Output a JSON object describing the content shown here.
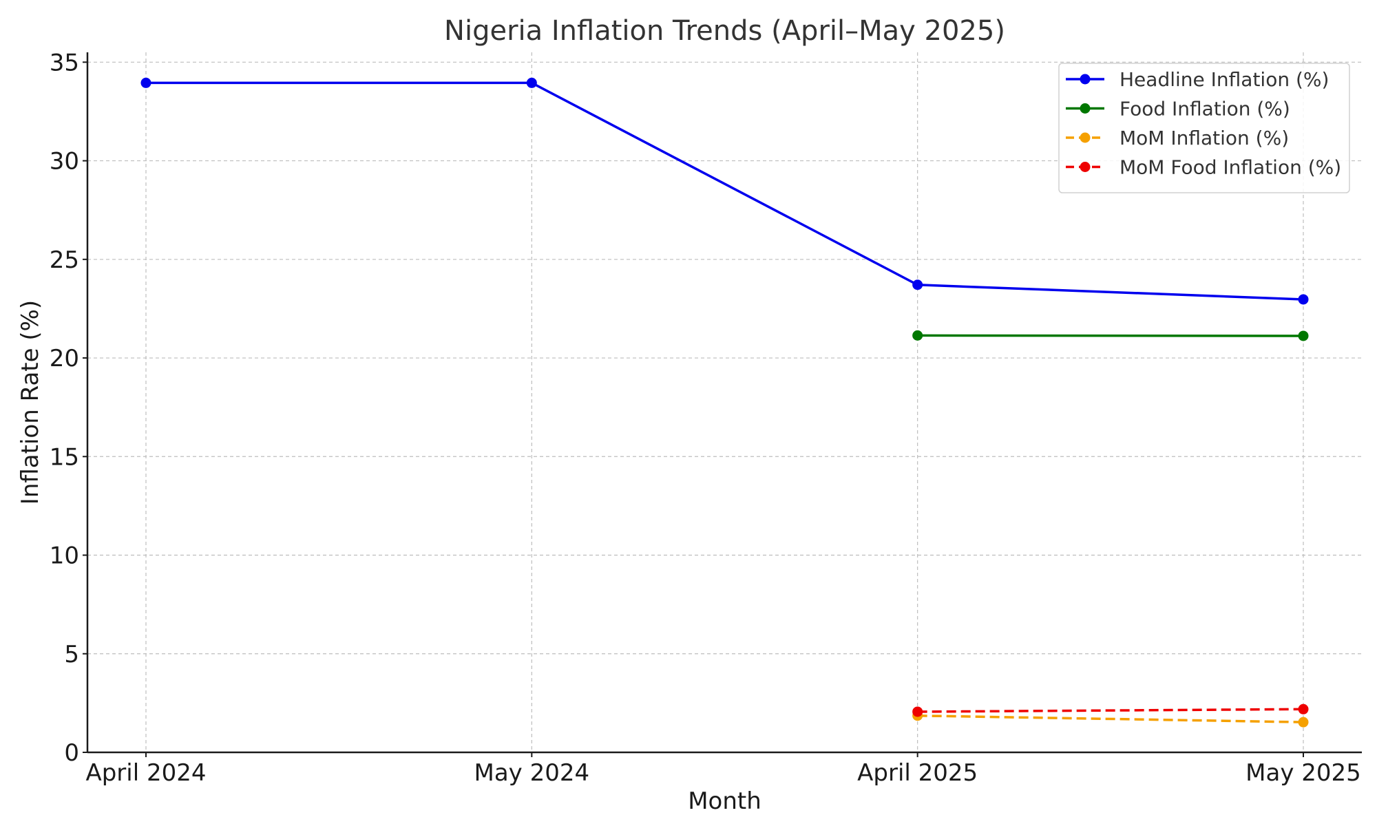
{
  "chart_data": {
    "type": "line",
    "title": "Nigeria Inflation Trends (April–May 2025)",
    "xlabel": "Month",
    "ylabel": "Inflation Rate (%)",
    "categories": [
      "April 2024",
      "May 2024",
      "April 2025",
      "May 2025"
    ],
    "ylim": [
      0,
      35.5
    ],
    "yticks": [
      "0",
      "5",
      "10",
      "15",
      "20",
      "25",
      "30",
      "35"
    ],
    "grid": true,
    "legend_position": "top-right",
    "series": [
      {
        "name": "Headline Inflation (%)",
        "values": [
          33.95,
          33.95,
          23.71,
          22.97
        ],
        "color": "#0000ee",
        "dashed": false
      },
      {
        "name": "Food Inflation (%)",
        "values": [
          null,
          null,
          21.14,
          21.12
        ],
        "color": "#007700",
        "dashed": false
      },
      {
        "name": "MoM Inflation (%)",
        "values": [
          null,
          null,
          1.86,
          1.53
        ],
        "color": "#f5a000",
        "dashed": true
      },
      {
        "name": "MoM Food Inflation (%)",
        "values": [
          null,
          null,
          2.06,
          2.19
        ],
        "color": "#ee0000",
        "dashed": true
      }
    ]
  }
}
